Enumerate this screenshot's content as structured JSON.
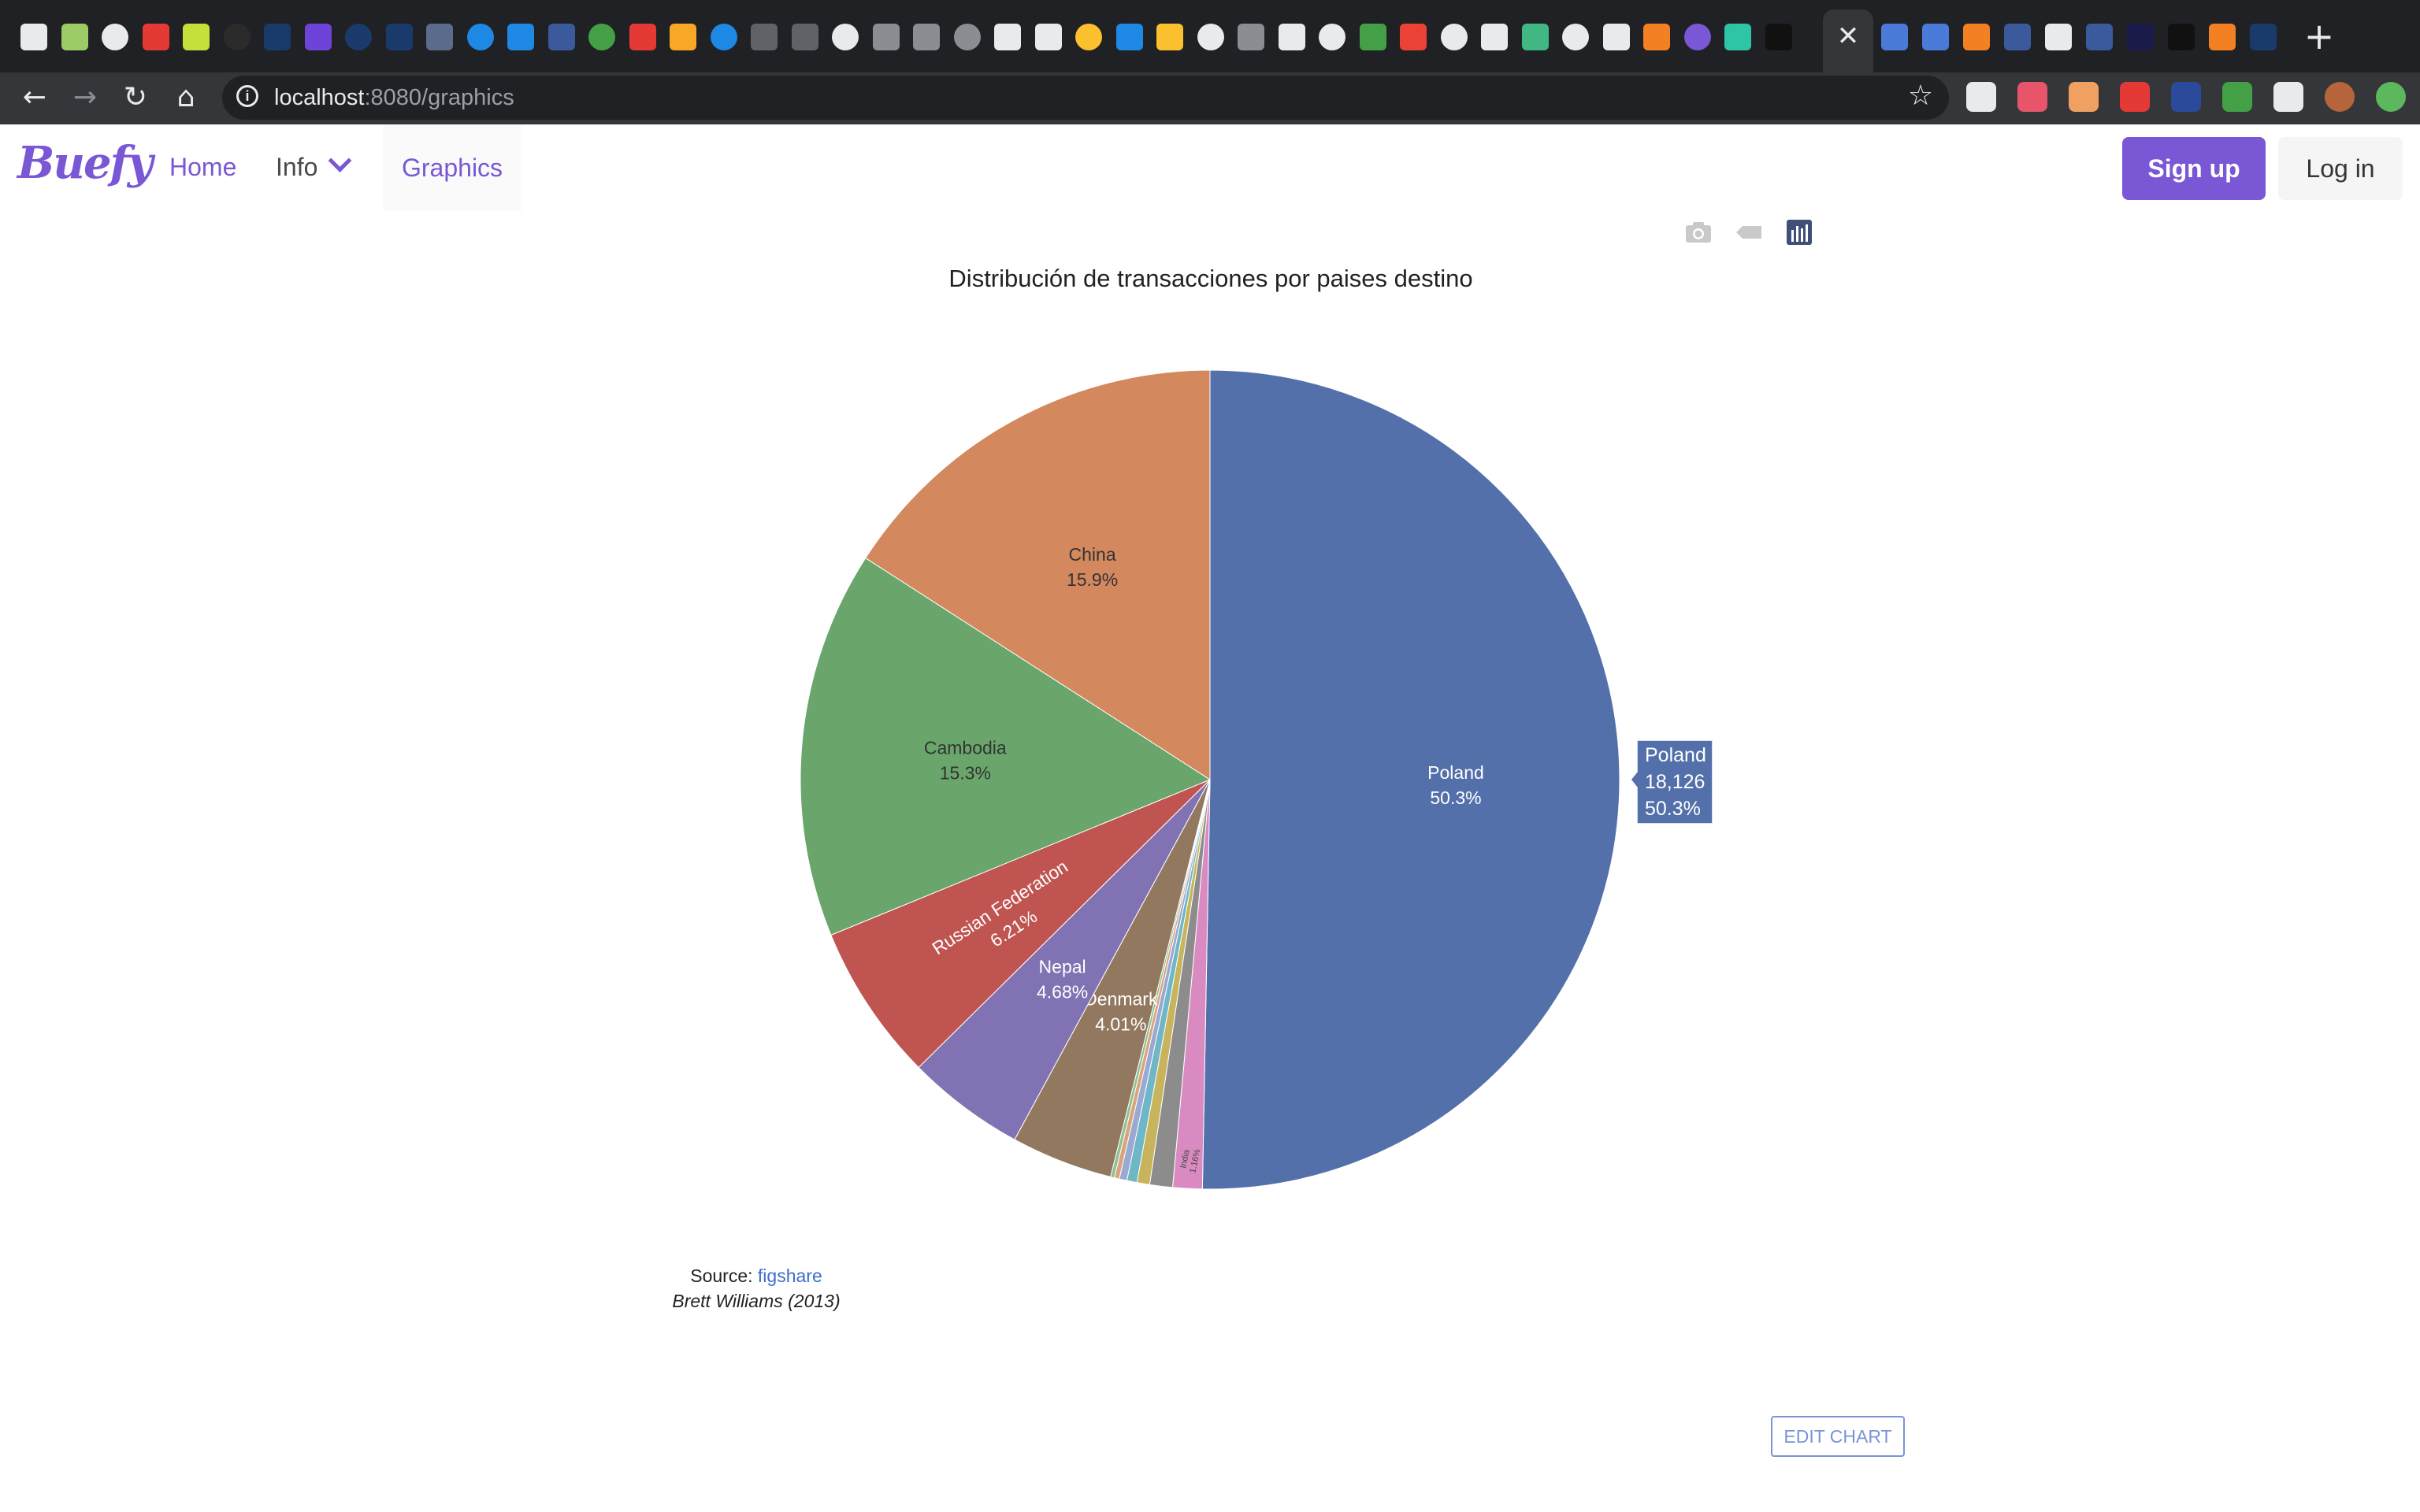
{
  "browser": {
    "tab_close_glyph": "✕",
    "new_tab_glyph": "+",
    "url_host": "localhost",
    "url_path": ":8080/graphics",
    "tab_icons": [
      {
        "name": "tab-icon",
        "color": "#e8eaed"
      },
      {
        "name": "tab-icon",
        "color": "#9ccc65"
      },
      {
        "name": "tab-icon",
        "color": "#e8eaed"
      },
      {
        "name": "tab-icon",
        "color": "#e53935"
      },
      {
        "name": "tab-icon",
        "color": "#c6e03a"
      },
      {
        "name": "tab-icon",
        "color": "#2b2b2b"
      },
      {
        "name": "tab-icon",
        "color": "#1a3a6b"
      },
      {
        "name": "tab-icon",
        "color": "#6e44d8"
      },
      {
        "name": "tab-icon",
        "color": "#1a3a6b"
      },
      {
        "name": "tab-icon",
        "color": "#1a3a6b"
      },
      {
        "name": "tab-icon",
        "color": "#5b6b8c"
      },
      {
        "name": "tab-icon",
        "color": "#1e88e5"
      },
      {
        "name": "tab-icon",
        "color": "#1e88e5"
      },
      {
        "name": "tab-icon",
        "color": "#3a5a9b"
      },
      {
        "name": "tab-icon",
        "color": "#43a047"
      },
      {
        "name": "tab-icon",
        "color": "#e53935"
      },
      {
        "name": "tab-icon",
        "color": "#f9a825"
      },
      {
        "name": "tab-icon",
        "color": "#1e88e5"
      },
      {
        "name": "tab-icon",
        "color": "#5f6368"
      },
      {
        "name": "tab-icon",
        "color": "#5f6368"
      },
      {
        "name": "tab-icon",
        "color": "#e8eaed"
      },
      {
        "name": "tab-icon",
        "color": "#8a8d91"
      },
      {
        "name": "tab-icon",
        "color": "#8a8d91"
      },
      {
        "name": "tab-icon",
        "color": "#8a8d91"
      },
      {
        "name": "tab-icon",
        "color": "#e8eaed"
      },
      {
        "name": "tab-icon",
        "color": "#e8eaed"
      },
      {
        "name": "tab-icon",
        "color": "#fbc02d"
      },
      {
        "name": "tab-icon",
        "color": "#1e88e5"
      },
      {
        "name": "tab-icon",
        "color": "#fbc02d"
      },
      {
        "name": "tab-icon",
        "color": "#e8eaed"
      },
      {
        "name": "tab-icon",
        "color": "#8a8d91"
      },
      {
        "name": "tab-icon",
        "color": "#e8eaed"
      },
      {
        "name": "tab-icon",
        "color": "#e8eaed"
      },
      {
        "name": "tab-icon",
        "color": "#43a047"
      },
      {
        "name": "tab-icon",
        "color": "#ea4335"
      },
      {
        "name": "tab-icon",
        "color": "#e8eaed"
      },
      {
        "name": "tab-icon",
        "color": "#e8eaed"
      },
      {
        "name": "tab-icon",
        "color": "#41b883"
      },
      {
        "name": "tab-icon",
        "color": "#e8eaed"
      },
      {
        "name": "tab-icon",
        "color": "#e8eaed"
      },
      {
        "name": "tab-icon",
        "color": "#f48024"
      },
      {
        "name": "tab-icon",
        "color": "#7957d5"
      },
      {
        "name": "tab-icon",
        "color": "#2ec4a6"
      },
      {
        "name": "tab-icon",
        "color": "#111111"
      }
    ],
    "tab_icons_right": [
      {
        "name": "tab-icon",
        "color": "#4a7bd8"
      },
      {
        "name": "tab-icon",
        "color": "#4a7bd8"
      },
      {
        "name": "tab-icon",
        "color": "#f48024"
      },
      {
        "name": "tab-icon",
        "color": "#3a5a9b"
      },
      {
        "name": "tab-icon",
        "color": "#e8eaed"
      },
      {
        "name": "tab-icon",
        "color": "#3a5a9b"
      },
      {
        "name": "tab-icon",
        "color": "#1a1a4b"
      },
      {
        "name": "tab-icon",
        "color": "#111111"
      },
      {
        "name": "tab-icon",
        "color": "#f48024"
      },
      {
        "name": "tab-icon",
        "color": "#1a3a6b"
      }
    ],
    "extensions": [
      {
        "name": "extension-icon",
        "color": "#e8eaed"
      },
      {
        "name": "extension-icon",
        "color": "#e8556b"
      },
      {
        "name": "extension-icon",
        "color": "#f0a060"
      },
      {
        "name": "extension-icon",
        "color": "#e53935"
      },
      {
        "name": "extension-icon",
        "color": "#2b4a9b"
      },
      {
        "name": "extension-icon",
        "color": "#43a047"
      },
      {
        "name": "extension-icon",
        "color": "#e8eaed"
      },
      {
        "name": "extension-icon",
        "color": "#b5643c"
      },
      {
        "name": "extension-icon",
        "color": "#5cb85c"
      }
    ]
  },
  "navbar": {
    "logo": "Buefy",
    "links": {
      "home": "Home",
      "info": "Info",
      "graphics": "Graphics"
    },
    "signup": "Sign up",
    "login": "Log in"
  },
  "source": {
    "label": "Source: ",
    "link_text": "figshare",
    "citation": "Brett Williams (2013)"
  },
  "edit_chart": "EDIT CHART",
  "hover": {
    "label": "Poland",
    "value": "18,126",
    "percent": "50.3%"
  },
  "chart_data": {
    "type": "pie",
    "title": "Distribución de transacciones por paises destino",
    "sort_direction": "clockwise from top",
    "slices": [
      {
        "label": "Poland",
        "percent": 50.3,
        "value": 18126,
        "color": "#5470ab",
        "text_label": "Poland",
        "text_percent": "50.3%",
        "text_color": "#ffffff"
      },
      {
        "label": "India",
        "percent": 1.16,
        "color": "#d98bc1",
        "text_label": "India",
        "text_percent": "1.16%",
        "text_color": "#444444"
      },
      {
        "label": "",
        "percent": 0.9,
        "color": "#8c8c8c",
        "text_label": "",
        "text_percent": "",
        "text_color": "#444444"
      },
      {
        "label": "",
        "percent": 0.5,
        "color": "#c8b45c",
        "text_label": "",
        "text_percent": "",
        "text_color": "#444444"
      },
      {
        "label": "",
        "percent": 0.4,
        "color": "#6fb7c7",
        "text_label": "",
        "text_percent": "",
        "text_color": "#444444"
      },
      {
        "label": "",
        "percent": 0.3,
        "color": "#9aa9d2",
        "text_label": "",
        "text_percent": "",
        "text_color": "#444444"
      },
      {
        "label": "",
        "percent": 0.2,
        "color": "#d9a37e",
        "text_label": "",
        "text_percent": "",
        "text_color": "#444444"
      },
      {
        "label": "",
        "percent": 0.15,
        "color": "#8fc08f",
        "text_label": "",
        "text_percent": "",
        "text_color": "#444444"
      },
      {
        "label": "Denmark",
        "percent": 4.01,
        "color": "#937860",
        "text_label": "Denmark",
        "text_percent": "4.01%",
        "text_color": "#ffffff"
      },
      {
        "label": "Nepal",
        "percent": 4.68,
        "color": "#8172b3",
        "text_label": "Nepal",
        "text_percent": "4.68%",
        "text_color": "#ffffff"
      },
      {
        "label": "Russian Federation",
        "percent": 6.21,
        "color": "#c05450",
        "text_label": "Russian Federation",
        "text_percent": "6.21%",
        "text_color": "#ffffff"
      },
      {
        "label": "Cambodia",
        "percent": 15.3,
        "color": "#6aa66c",
        "text_label": "Cambodia",
        "text_percent": "15.3%",
        "text_color": "#333333"
      },
      {
        "label": "China",
        "percent": 15.9,
        "color": "#d4885e",
        "text_label": "China",
        "text_percent": "15.9%",
        "text_color": "#333333"
      }
    ]
  }
}
